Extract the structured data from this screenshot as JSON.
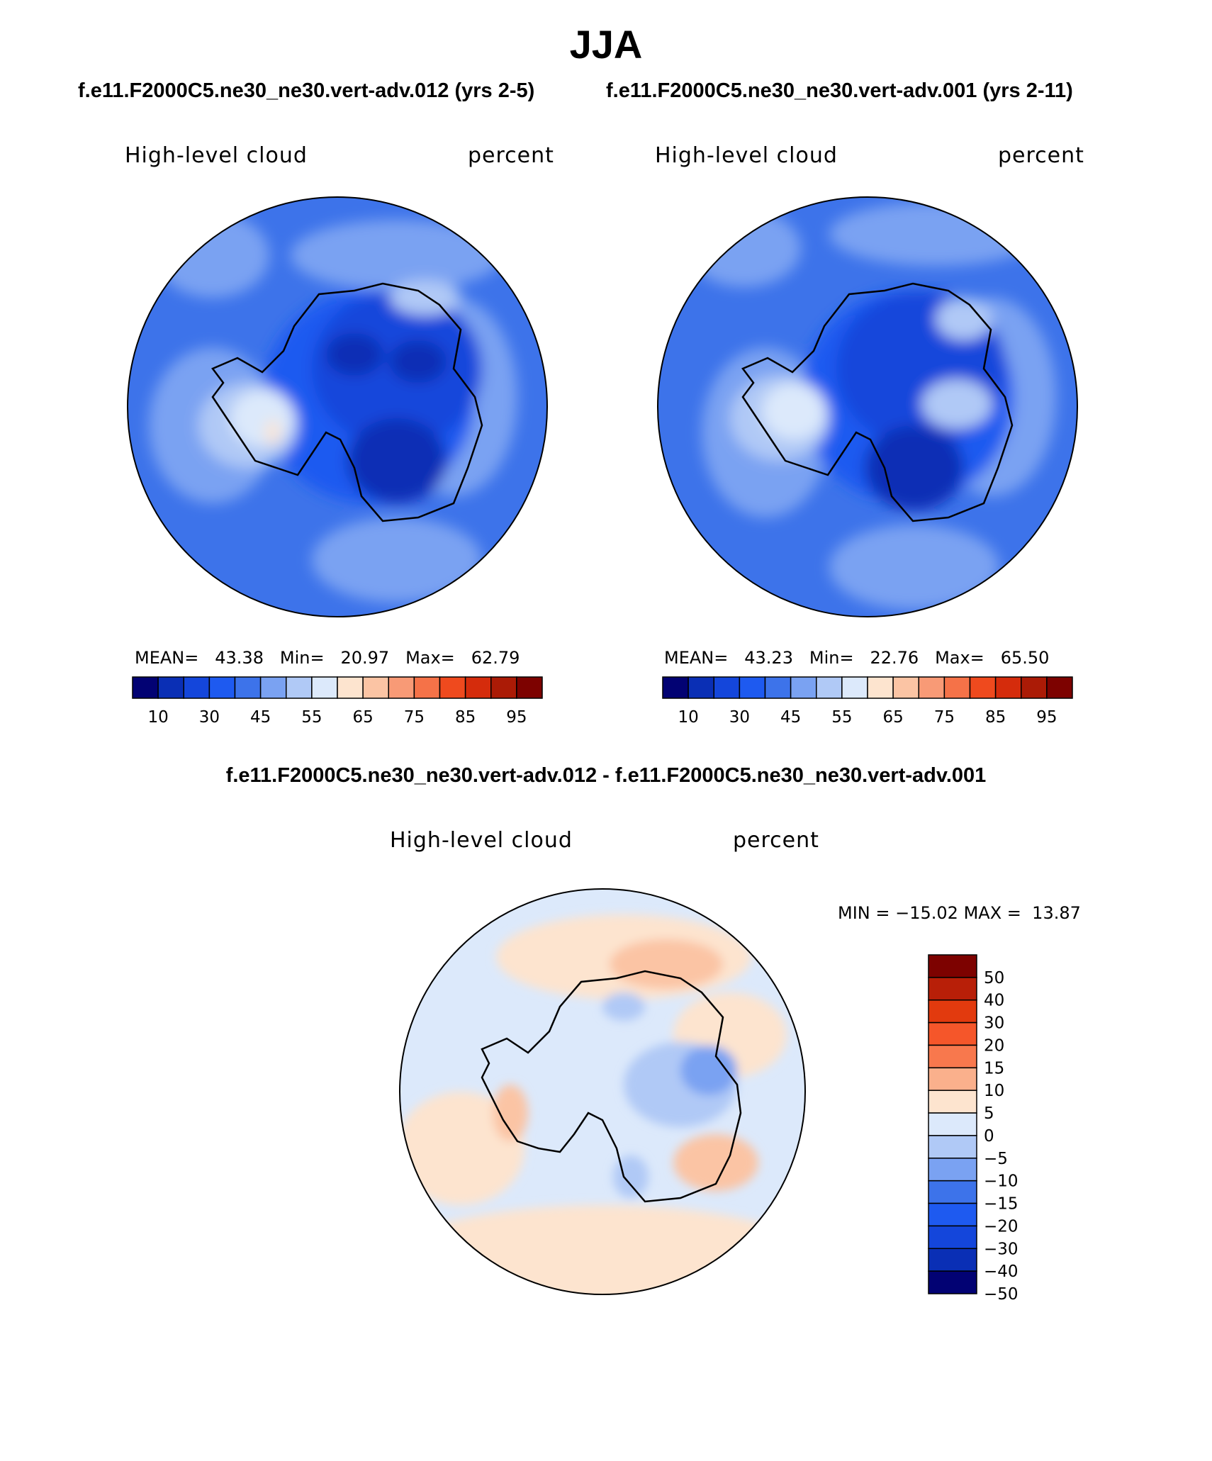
{
  "page": {
    "title": "JJA",
    "case_title_left": "f.e11.F2000C5.ne30_ne30.vert-adv.012 (yrs 2-5)",
    "case_title_right": "f.e11.F2000C5.ne30_ne30.vert-adv.001 (yrs 2-11)",
    "diff_title": "f.e11.F2000C5.ne30_ne30.vert-adv.012 - f.e11.F2000C5.ne30_ne30.vert-adv.001"
  },
  "chart_data": [
    {
      "type": "heatmap",
      "projection": "south-polar stereographic",
      "variable": "High-level cloud",
      "units": "percent",
      "stats": {
        "mean_label": "MEAN=",
        "mean": "43.38",
        "min_label": "Min=",
        "min": "20.97",
        "max_label": "Max=",
        "max": "62.79"
      },
      "colorbar_tick_labels": [
        "10",
        "30",
        "45",
        "55",
        "65",
        "75",
        "85",
        "95"
      ],
      "colorbar_colors": [
        "#020273",
        "#0a2fb5",
        "#1446db",
        "#1e5af0",
        "#3d73ea",
        "#7aa2f2",
        "#b0c9f6",
        "#dce9fb",
        "#fde4cf",
        "#fbc4a4",
        "#f89a76",
        "#f57248",
        "#ef4a1e",
        "#d52c0c",
        "#ab1b06",
        "#7d0200"
      ]
    },
    {
      "type": "heatmap",
      "projection": "south-polar stereographic",
      "variable": "High-level cloud",
      "units": "percent",
      "stats": {
        "mean_label": "MEAN=",
        "mean": "43.23",
        "min_label": "Min=",
        "min": "22.76",
        "max_label": "Max=",
        "max": "65.50"
      },
      "colorbar_tick_labels": [
        "10",
        "30",
        "45",
        "55",
        "65",
        "75",
        "85",
        "95"
      ],
      "colorbar_colors": [
        "#020273",
        "#0a2fb5",
        "#1446db",
        "#1e5af0",
        "#3d73ea",
        "#7aa2f2",
        "#b0c9f6",
        "#dce9fb",
        "#fde4cf",
        "#fbc4a4",
        "#f89a76",
        "#f57248",
        "#ef4a1e",
        "#d52c0c",
        "#ab1b06",
        "#7d0200"
      ]
    },
    {
      "type": "heatmap",
      "projection": "south-polar stereographic",
      "variable": "High-level cloud",
      "units": "percent",
      "stats": {
        "min_label": "MIN =",
        "min": "−15.02",
        "max_label": "MAX =",
        "max": "13.87"
      },
      "colorbar_tick_labels": [
        "50",
        "40",
        "30",
        "20",
        "15",
        "10",
        "5",
        "0",
        "−5",
        "−10",
        "−15",
        "−20",
        "−30",
        "−40",
        "−50"
      ],
      "colorbar_colors": [
        "#7d0200",
        "#b81f08",
        "#e23a0e",
        "#f5562a",
        "#f8784d",
        "#fab08c",
        "#fde4cf",
        "#dce9fb",
        "#b0c9f6",
        "#7aa2f2",
        "#3d73ea",
        "#1e5af0",
        "#1446db",
        "#0a2fb5",
        "#020273"
      ]
    }
  ]
}
